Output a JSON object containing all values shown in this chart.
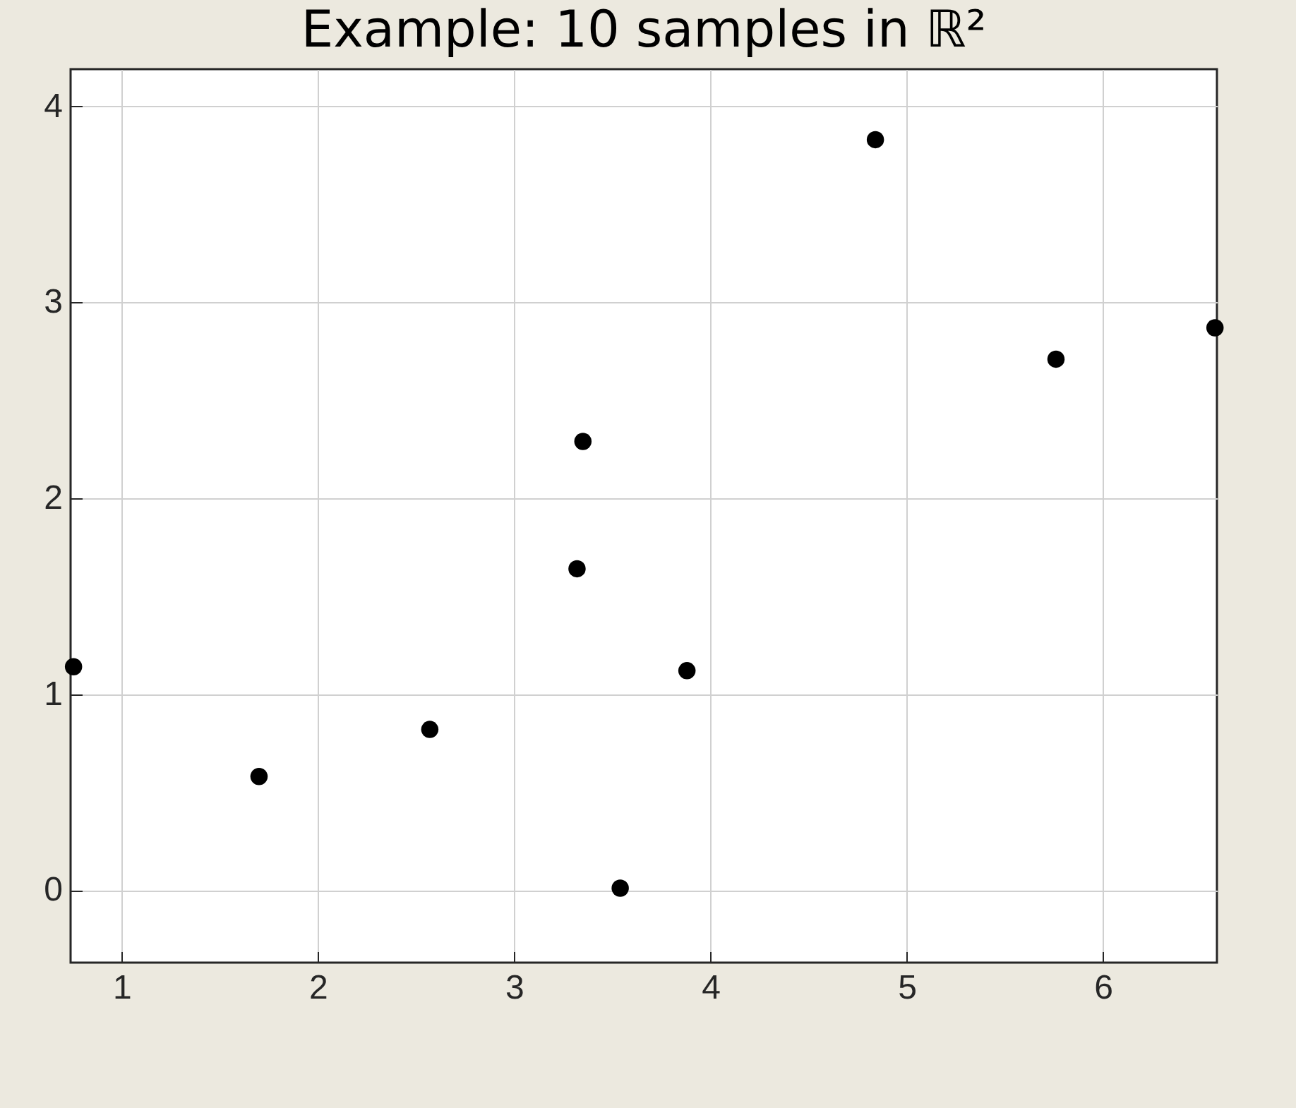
{
  "chart_data": {
    "type": "scatter",
    "title": "Example: 10 samples in ℝ²",
    "x": [
      0.755,
      1.7,
      2.57,
      3.32,
      3.35,
      3.54,
      3.88,
      4.84,
      5.76,
      6.57
    ],
    "values": [
      1.14,
      0.58,
      0.82,
      1.64,
      2.29,
      0.01,
      1.12,
      3.83,
      2.71,
      2.87
    ],
    "color": "#000000",
    "marker": "circle",
    "xlim": [
      0.74,
      6.58
    ],
    "ylim": [
      -0.37,
      4.19
    ],
    "xticks": [
      1,
      2,
      3,
      4,
      5,
      6
    ],
    "yticks": [
      0,
      1,
      2,
      3,
      4
    ],
    "grid": true
  }
}
